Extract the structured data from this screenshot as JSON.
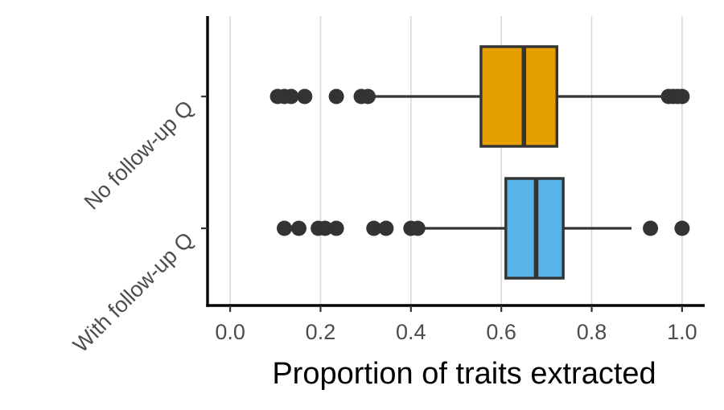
{
  "chart_data": {
    "type": "boxplot",
    "orientation": "horizontal",
    "title": "",
    "xlabel": "Proportion of traits extracted",
    "ylabel": "",
    "xlim": [
      -0.05,
      1.05
    ],
    "xticks": [
      0.0,
      0.2,
      0.4,
      0.6,
      0.8,
      1.0
    ],
    "xtick_labels": [
      "0.0",
      "0.2",
      "0.4",
      "0.6",
      "0.8",
      "1.0"
    ],
    "grid": "vertical-major",
    "legend": "none",
    "categories": [
      "No follow-up Q",
      "With follow-up Q"
    ],
    "series": [
      {
        "category": "No follow-up Q",
        "color": "#E69F00",
        "whisker_low": 0.315,
        "q1": 0.555,
        "median": 0.65,
        "q3": 0.723,
        "whisker_high": 0.965,
        "outliers": [
          0.105,
          0.12,
          0.135,
          0.165,
          0.235,
          0.29,
          0.305,
          0.97,
          0.98,
          0.99,
          1.0
        ]
      },
      {
        "category": "With follow-up Q",
        "color": "#56B4E9",
        "whisker_low": 0.425,
        "q1": 0.61,
        "median": 0.677,
        "q3": 0.737,
        "whisker_high": 0.888,
        "outliers": [
          0.12,
          0.152,
          0.195,
          0.21,
          0.235,
          0.318,
          0.345,
          0.4,
          0.415,
          0.93,
          1.0
        ]
      }
    ]
  }
}
